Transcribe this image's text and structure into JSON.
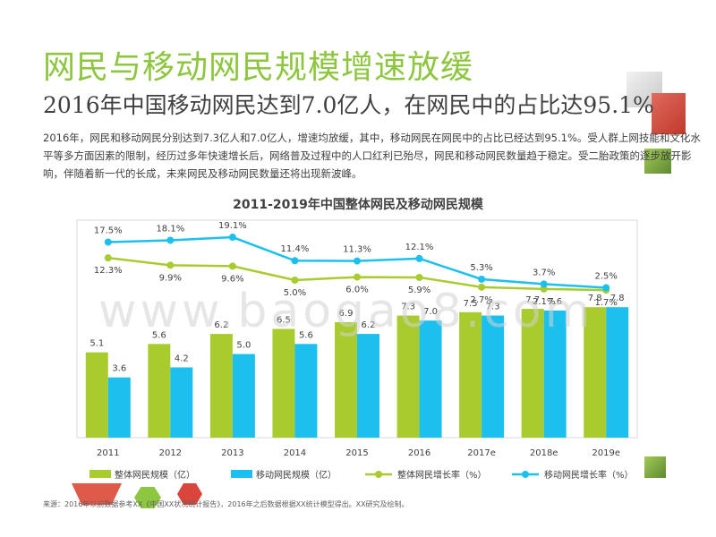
{
  "header": {
    "title": "网民与移动网民规模增速放缓",
    "subtitle": "2016年中国移动网民达到7.0亿人，在网民中的占比达95.1%",
    "description": "2016年，网民和移动网民分别达到7.3亿人和7.0亿人，增速均放缓，其中，移动网民在网民中的占比已经达到95.1%。受人群上网技能和文化水平等多方面因素的限制，经历过多年快速增长后，网络普及过程中的人口红利已殆尽，网民和移动网民数量趋于稳定。受二胎政策的逐步放开影响，伴随着新一代的长成，未来网民及移动网民数量还将出现新波峰。"
  },
  "watermark": "www.baogao8.com",
  "source": "来源：2016年以前数据参考XX《中国XX状况统计报告》，2016年之后数据根据XX统计模型得出。XX研究及绘制。",
  "colors": {
    "green": "#a8cc2e",
    "blue": "#1cc0ee",
    "green_line": "#a8cc2e",
    "blue_line": "#1cc0ee",
    "title_green": "#8dc63f"
  },
  "chart_data": {
    "type": "bar",
    "title": "2011-2019年中国整体网民及移动网民规模",
    "categories": [
      "2011",
      "2012",
      "2013",
      "2014",
      "2015",
      "2016",
      "2017e",
      "2018e",
      "2019e"
    ],
    "series": [
      {
        "name": "整体网民规模（亿）",
        "kind": "bar",
        "values": [
          5.1,
          5.6,
          6.2,
          6.5,
          6.9,
          7.3,
          7.5,
          7.7,
          7.8
        ]
      },
      {
        "name": "移动网民规模（亿）",
        "kind": "bar",
        "values": [
          3.6,
          4.2,
          5.0,
          5.6,
          6.2,
          7.0,
          7.3,
          7.6,
          7.8
        ]
      },
      {
        "name": "整体网民增长率（%）",
        "kind": "line",
        "values": [
          12.3,
          9.9,
          9.6,
          5.0,
          6.0,
          5.9,
          2.7,
          2.1,
          1.7
        ],
        "labels": [
          "12.3%",
          "9.9%",
          "9.6%",
          "5.0%",
          "6.0%",
          "5.9%",
          "2.7%",
          "2.1%",
          "1.7%"
        ]
      },
      {
        "name": "移动网民增长率（%）",
        "kind": "line",
        "values": [
          17.5,
          18.1,
          19.1,
          11.4,
          11.3,
          12.1,
          5.3,
          3.7,
          2.5
        ],
        "labels": [
          "17.5%",
          "18.1%",
          "19.1%",
          "11.4%",
          "11.3%",
          "12.1%",
          "5.3%",
          "3.7%",
          "2.5%"
        ]
      }
    ],
    "bar_ylim": [
      0,
      13
    ],
    "legend_position": "bottom"
  }
}
